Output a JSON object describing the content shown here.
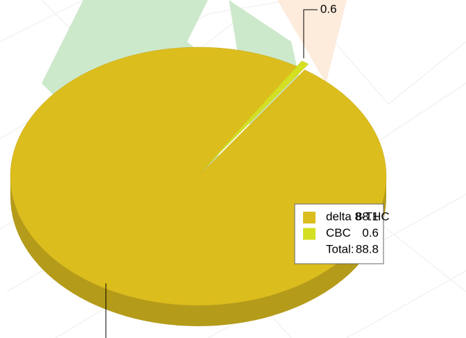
{
  "chart_data": {
    "type": "pie",
    "categories": [
      "delta 8-THC",
      "CBC"
    ],
    "values": [
      88.1,
      0.6
    ],
    "colors": [
      "#dcbd1e",
      "#d4df22"
    ],
    "value_labels": [
      null,
      "0.6"
    ],
    "total_label": "Total:",
    "total": 88.8,
    "legend": "right"
  }
}
